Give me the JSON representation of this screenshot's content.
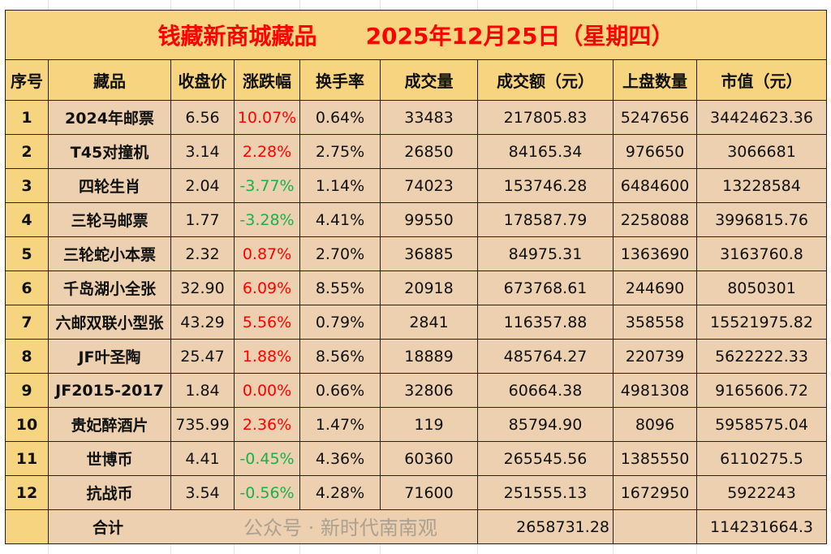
{
  "title": {
    "text": "钱藏新商城藏品",
    "date": "2025年12月25日（星期四）"
  },
  "colors": {
    "header_bg": "#f7d580",
    "cell_bg": "#ecd0b0",
    "title_text": "#ff0000",
    "up": "#ff0000",
    "down": "#1ab04a"
  },
  "columns": [
    "序号",
    "藏品",
    "收盘价",
    "涨跌幅",
    "换手率",
    "成交量",
    "成交额（元）",
    "上盘数量",
    "市值（元）"
  ],
  "rows": [
    {
      "seq": "1",
      "name": "2024年邮票",
      "close": "6.56",
      "change": "10.07%",
      "dir": "up",
      "turnover": "0.64%",
      "volume": "33483",
      "amount": "217805.83",
      "listed": "5247656",
      "cap": "34424623.36"
    },
    {
      "seq": "2",
      "name": "T45对撞机",
      "close": "3.14",
      "change": "2.28%",
      "dir": "up",
      "turnover": "2.75%",
      "volume": "26850",
      "amount": "84165.34",
      "listed": "976650",
      "cap": "3066681"
    },
    {
      "seq": "3",
      "name": "四轮生肖",
      "close": "2.04",
      "change": "-3.77%",
      "dir": "down",
      "turnover": "1.14%",
      "volume": "74023",
      "amount": "153746.28",
      "listed": "6484600",
      "cap": "13228584"
    },
    {
      "seq": "4",
      "name": "三轮马邮票",
      "close": "1.77",
      "change": "-3.28%",
      "dir": "down",
      "turnover": "4.41%",
      "volume": "99550",
      "amount": "178587.79",
      "listed": "2258088",
      "cap": "3996815.76"
    },
    {
      "seq": "5",
      "name": "三轮蛇小本票",
      "close": "2.32",
      "change": "0.87%",
      "dir": "up",
      "turnover": "2.70%",
      "volume": "36885",
      "amount": "84975.31",
      "listed": "1363690",
      "cap": "3163760.8"
    },
    {
      "seq": "6",
      "name": "千岛湖小全张",
      "close": "32.90",
      "change": "6.09%",
      "dir": "up",
      "turnover": "8.55%",
      "volume": "20918",
      "amount": "673768.61",
      "listed": "244690",
      "cap": "8050301"
    },
    {
      "seq": "7",
      "name": "六邮双联小型张",
      "close": "43.29",
      "change": "5.56%",
      "dir": "up",
      "turnover": "0.79%",
      "volume": "2841",
      "amount": "116357.88",
      "listed": "358558",
      "cap": "15521975.82"
    },
    {
      "seq": "8",
      "name": "JF叶圣陶",
      "close": "25.47",
      "change": "1.88%",
      "dir": "up",
      "turnover": "8.56%",
      "volume": "18889",
      "amount": "485764.27",
      "listed": "220739",
      "cap": "5622222.33"
    },
    {
      "seq": "9",
      "name": "JF2015-2017",
      "close": "1.84",
      "change": "0.00%",
      "dir": "up",
      "turnover": "0.66%",
      "volume": "32806",
      "amount": "60664.38",
      "listed": "4981308",
      "cap": "9165606.72"
    },
    {
      "seq": "10",
      "name": "贵妃醉酒片",
      "close": "735.99",
      "change": "2.36%",
      "dir": "up",
      "turnover": "1.47%",
      "volume": "119",
      "amount": "85794.90",
      "listed": "8096",
      "cap": "5958575.04"
    },
    {
      "seq": "11",
      "name": "世博币",
      "close": "4.41",
      "change": "-0.45%",
      "dir": "down",
      "turnover": "4.36%",
      "volume": "60360",
      "amount": "265545.56",
      "listed": "1385550",
      "cap": "6110275.5"
    },
    {
      "seq": "12",
      "name": "抗战币",
      "close": "3.54",
      "change": "-0.56%",
      "dir": "down",
      "turnover": "4.28%",
      "volume": "71600",
      "amount": "251555.13",
      "listed": "1672950",
      "cap": "5922243"
    }
  ],
  "total": {
    "label": "合计",
    "amount": "2658731.28",
    "cap": "114231664.3"
  },
  "watermark": "公众号 · 新时代南南观"
}
